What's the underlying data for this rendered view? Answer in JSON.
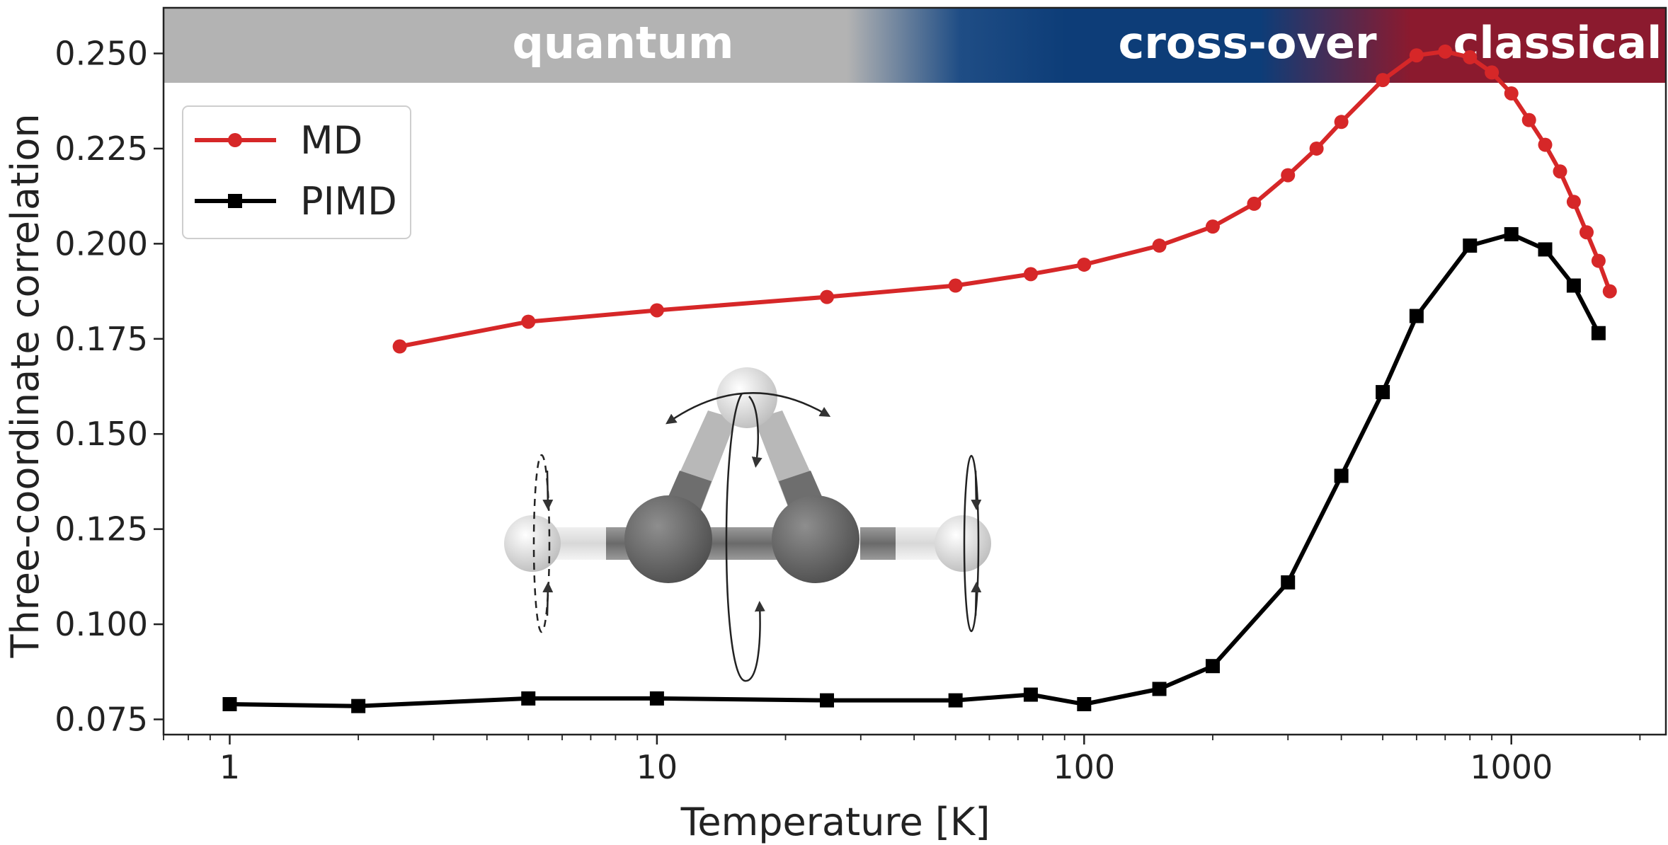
{
  "chart_data": {
    "type": "line",
    "title": "",
    "xlabel": "Temperature [K]",
    "ylabel": "Three-coordinate correlation",
    "x_scale": "log",
    "xlim": [
      0.7,
      2300
    ],
    "ylim": [
      0.071,
      0.262
    ],
    "x_ticks": [
      1,
      10,
      100,
      1000
    ],
    "x_tick_labels": [
      "1",
      "10",
      "100",
      "1000"
    ],
    "y_ticks": [
      0.075,
      0.1,
      0.125,
      0.15,
      0.175,
      0.2,
      0.225,
      0.25
    ],
    "y_tick_labels": [
      "0.075",
      "0.100",
      "0.125",
      "0.150",
      "0.175",
      "0.200",
      "0.225",
      "0.250"
    ],
    "grid": false,
    "legend_position": "top-left",
    "regimes": [
      {
        "label": "quantum",
        "color": "#b3b3b3"
      },
      {
        "label": "cross-over",
        "color": "#0d3d78"
      },
      {
        "label": "classical",
        "color": "#8b1a2e"
      }
    ],
    "series": [
      {
        "name": "MD",
        "color": "#d62728",
        "marker": "circle",
        "x": [
          2.5,
          5,
          10,
          25,
          50,
          75,
          100,
          150,
          200,
          250,
          300,
          350,
          400,
          500,
          600,
          700,
          800,
          900,
          1000,
          1100,
          1200,
          1300,
          1400,
          1500,
          1600,
          1700
        ],
        "y": [
          0.173,
          0.1795,
          0.1825,
          0.186,
          0.189,
          0.192,
          0.1945,
          0.1995,
          0.2045,
          0.2105,
          0.218,
          0.225,
          0.232,
          0.243,
          0.2495,
          0.2505,
          0.249,
          0.245,
          0.2395,
          0.2325,
          0.226,
          0.219,
          0.211,
          0.203,
          0.1955,
          0.1875
        ]
      },
      {
        "name": "PIMD",
        "color": "#000000",
        "marker": "square",
        "x": [
          1,
          2,
          5,
          10,
          25,
          50,
          75,
          100,
          150,
          200,
          300,
          400,
          500,
          600,
          800,
          1000,
          1200,
          1400,
          1600
        ],
        "y": [
          0.079,
          0.0785,
          0.0805,
          0.0805,
          0.08,
          0.08,
          0.0815,
          0.079,
          0.083,
          0.089,
          0.111,
          0.139,
          0.161,
          0.181,
          0.1995,
          0.2025,
          0.1985,
          0.189,
          0.1765
        ]
      }
    ]
  },
  "inset": {
    "icon": "molecule-rotation-icon"
  }
}
